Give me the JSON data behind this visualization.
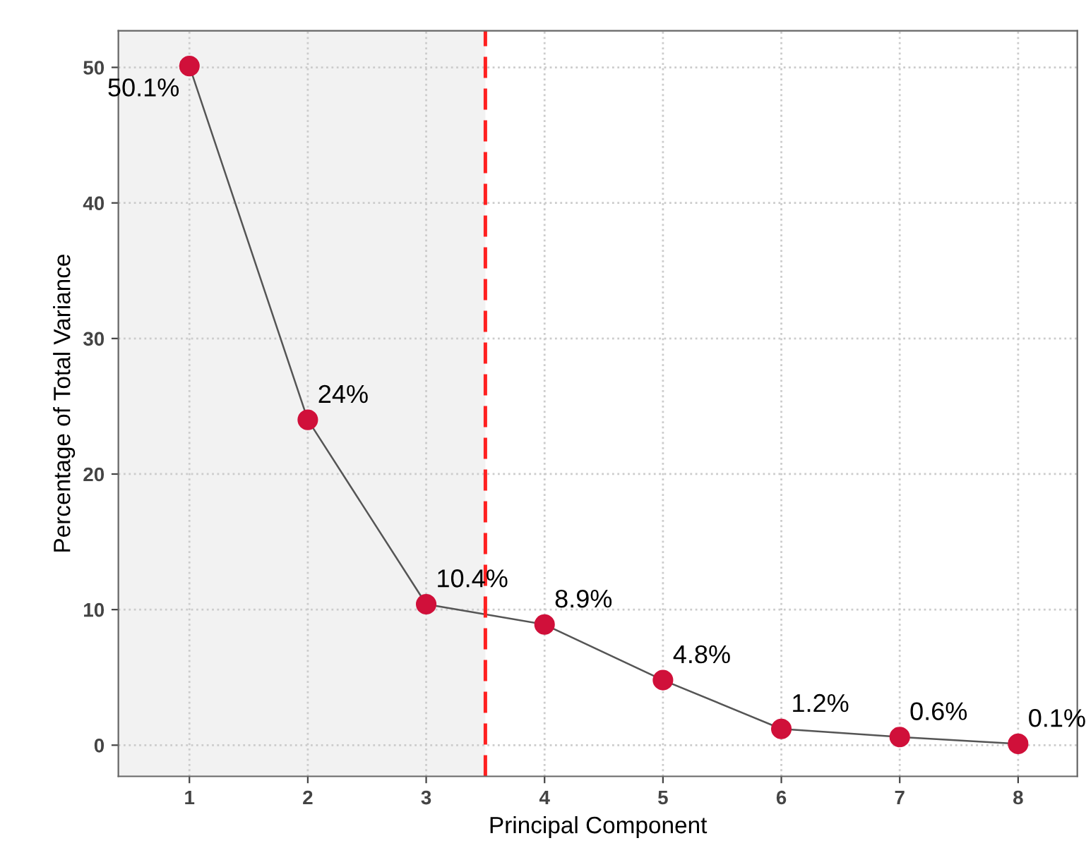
{
  "chart_data": {
    "type": "line",
    "xlabel": "Principal Component",
    "ylabel": "Percentage of Total Variance",
    "x": [
      1,
      2,
      3,
      4,
      5,
      6,
      7,
      8
    ],
    "series": [
      {
        "color": "#d0103a",
        "values": [
          50.1,
          24,
          10.4,
          8.9,
          4.8,
          1.2,
          0.6,
          0.1
        ],
        "value_labels": [
          "50.1%",
          "24%",
          "10.4%",
          "8.9%",
          "4.8%",
          "1.2%",
          "0.6%",
          "0.1%"
        ]
      }
    ],
    "xlim": [
      0.4,
      8.5
    ],
    "ylim": [
      -2.3,
      52.7
    ],
    "xticks": [
      1,
      2,
      3,
      4,
      5,
      6,
      7,
      8
    ],
    "yticks": [
      0,
      10,
      20,
      30,
      40,
      50
    ],
    "ref_lines": [
      {
        "axis": "x",
        "value": 3.5,
        "color": "#ff2020",
        "line_style": "dashed"
      }
    ],
    "bands": [
      {
        "axis": "x",
        "from": 0.4,
        "to": 3.5,
        "color": "#f2f2f2"
      }
    ],
    "grid": true,
    "marker": "circle"
  }
}
